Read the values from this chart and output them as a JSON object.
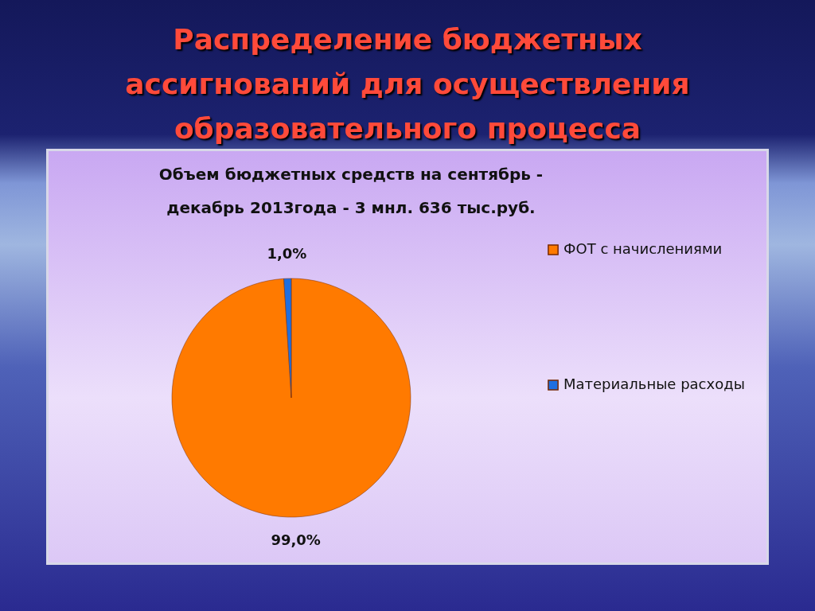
{
  "chart_data": {
    "type": "pie",
    "title": "Распределение бюджетных ассигнований для осуществления образовательного процесса",
    "subtitle": "Объем бюджетных средств на сентябрь - декабрь 2013года - 3 мнл. 636 тыс.руб.",
    "categories": [
      "ФОТ с начислениями",
      "Материальные расходы"
    ],
    "values": [
      99.0,
      1.0
    ],
    "colors": [
      "#ff7a00",
      "#1f6fe0"
    ],
    "value_labels": [
      "99,0%",
      "1,0%"
    ],
    "legend": "right"
  }
}
